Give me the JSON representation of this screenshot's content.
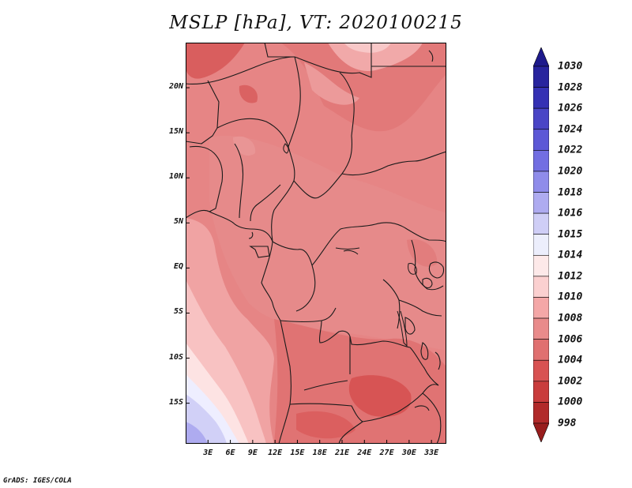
{
  "title": "MSLP [hPa], VT: 2020100215",
  "credit": "GrADS: IGES/COLA",
  "map": {
    "lat_labels": [
      "20N",
      "15N",
      "10N",
      "5N",
      "EQ",
      "5S",
      "10S",
      "15S"
    ],
    "lat_values": [
      20,
      15,
      10,
      5,
      0,
      -5,
      -10,
      -15
    ],
    "lon_labels": [
      "3E",
      "6E",
      "9E",
      "12E",
      "15E",
      "18E",
      "21E",
      "24E",
      "27E",
      "30E",
      "33E"
    ],
    "lon_values": [
      3,
      6,
      9,
      12,
      15,
      18,
      21,
      24,
      27,
      30,
      33
    ],
    "lat_range": [
      -19.5,
      25
    ],
    "lon_range": [
      0,
      35
    ],
    "field": "Mean sea level pressure"
  },
  "colorbar": {
    "labels": [
      "1030",
      "1028",
      "1026",
      "1024",
      "1022",
      "1020",
      "1018",
      "1016",
      "1015",
      "1014",
      "1012",
      "1010",
      "1008",
      "1006",
      "1004",
      "1002",
      "1000",
      "998"
    ],
    "colors": [
      "#1e1a8c",
      "#28249e",
      "#3531b4",
      "#4a45c6",
      "#5c58d6",
      "#726ee2",
      "#8f8cea",
      "#aeabf0",
      "#cfcef6",
      "#eceefc",
      "#fde9e9",
      "#fbd0d0",
      "#f4a7a7",
      "#e98b8b",
      "#e07070",
      "#d85252",
      "#c93c3c",
      "#b12a2a",
      "#981d1d"
    ]
  }
}
